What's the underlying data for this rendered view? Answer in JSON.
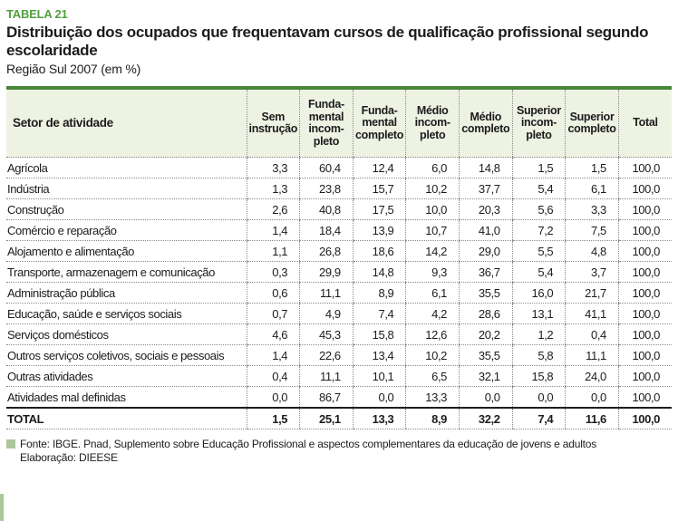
{
  "header": {
    "tag": "TABELA 21",
    "title": "Distribuição dos ocupados que frequentavam cursos de qualificação profissional segundo\nescolaridade",
    "subtitle": "Região Sul 2007 (em %)"
  },
  "table": {
    "columns": [
      "Setor de atividade",
      "Sem\ninstrução",
      "Funda-\nmental\nincom-\npleto",
      "Funda-\nmental\ncompleto",
      "Médio\nincom-\npleto",
      "Médio\ncompleto",
      "Superior\nincom-\npleto",
      "Superior\ncompleto",
      "Total"
    ],
    "rows": [
      {
        "label": "Agrícola",
        "values": [
          "3,3",
          "60,4",
          "12,4",
          "6,0",
          "14,8",
          "1,5",
          "1,5",
          "100,0"
        ]
      },
      {
        "label": "Indústria",
        "values": [
          "1,3",
          "23,8",
          "15,7",
          "10,2",
          "37,7",
          "5,4",
          "6,1",
          "100,0"
        ]
      },
      {
        "label": "Construção",
        "values": [
          "2,6",
          "40,8",
          "17,5",
          "10,0",
          "20,3",
          "5,6",
          "3,3",
          "100,0"
        ]
      },
      {
        "label": "Comércio e reparação",
        "values": [
          "1,4",
          "18,4",
          "13,9",
          "10,7",
          "41,0",
          "7,2",
          "7,5",
          "100,0"
        ]
      },
      {
        "label": "Alojamento e alimentação",
        "values": [
          "1,1",
          "26,8",
          "18,6",
          "14,2",
          "29,0",
          "5,5",
          "4,8",
          "100,0"
        ]
      },
      {
        "label": "Transporte, armazenagem e comunicação",
        "values": [
          "0,3",
          "29,9",
          "14,8",
          "9,3",
          "36,7",
          "5,4",
          "3,7",
          "100,0"
        ]
      },
      {
        "label": "Administração pública",
        "values": [
          "0,6",
          "11,1",
          "8,9",
          "6,1",
          "35,5",
          "16,0",
          "21,7",
          "100,0"
        ]
      },
      {
        "label": "Educação, saúde e serviços sociais",
        "values": [
          "0,7",
          "4,9",
          "7,4",
          "4,2",
          "28,6",
          "13,1",
          "41,1",
          "100,0"
        ]
      },
      {
        "label": "Serviços domésticos",
        "values": [
          "4,6",
          "45,3",
          "15,8",
          "12,6",
          "20,2",
          "1,2",
          "0,4",
          "100,0"
        ]
      },
      {
        "label": "Outros serviços coletivos, sociais e pessoais",
        "values": [
          "1,4",
          "22,6",
          "13,4",
          "10,2",
          "35,5",
          "5,8",
          "11,1",
          "100,0"
        ]
      },
      {
        "label": "Outras atividades",
        "values": [
          "0,4",
          "11,1",
          "10,1",
          "6,5",
          "32,1",
          "15,8",
          "24,0",
          "100,0"
        ]
      },
      {
        "label": "Atividades mal definidas",
        "values": [
          "0,0",
          "86,7",
          "0,0",
          "13,3",
          "0,0",
          "0,0",
          "0,0",
          "100,0"
        ]
      }
    ],
    "total_row": {
      "label": "TOTAL",
      "values": [
        "1,5",
        "25,1",
        "13,3",
        "8,9",
        "32,2",
        "7,4",
        "11,6",
        "100,0"
      ]
    }
  },
  "footer": {
    "fonte": "Fonte: IBGE. Pnad, Suplemento sobre Educação Profissional e aspectos complementares da educação de jovens e adultos",
    "elaboracao": "Elaboração: DIEESE"
  },
  "colors": {
    "accent_green": "#529f3f",
    "table_top_border_green": "#48863a",
    "header_background": "#edf2e3",
    "sage_green": "#abc79b",
    "dotted_line_gray": "#8b8b8b"
  }
}
